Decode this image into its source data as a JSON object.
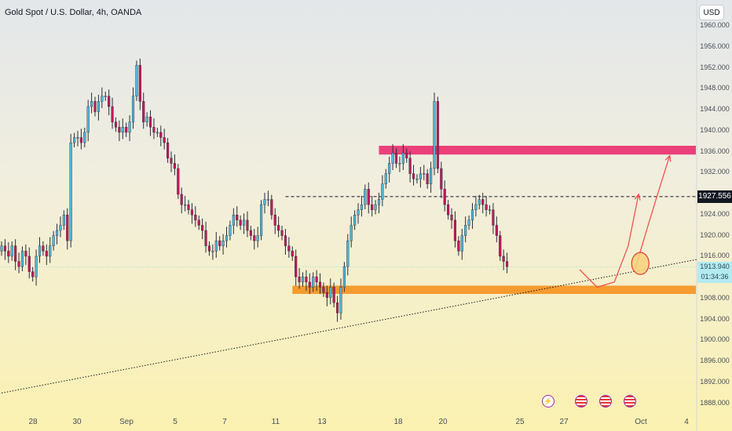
{
  "title": "Gold Spot / U.S. Dollar, 4h, OANDA",
  "currency_button": "USD",
  "price_axis_labels": [
    "1960.000",
    "1956.000",
    "1952.000",
    "1948.000",
    "1944.000",
    "1940.000",
    "1936.000",
    "1932.000",
    "1924.000",
    "1920.000",
    "1916.000",
    "1908.000",
    "1904.000",
    "1900.000",
    "1896.000",
    "1892.000",
    "1888.000"
  ],
  "date_axis_labels": [
    "28",
    "30",
    "Sep",
    "5",
    "7",
    "11",
    "13",
    "18",
    "20",
    "25",
    "27",
    "Oct",
    "4"
  ],
  "dashed_level_label": "1927.556",
  "last_price_label": "1913.940",
  "countdown_label": "01:34:36",
  "event_icons": [
    "lightning-icon",
    "us-flag-icon",
    "us-flag-icon",
    "us-flag-icon"
  ],
  "colors": {
    "bull": "#26a69a",
    "bear": "#ef5350",
    "body_bull": "#4fb6d6",
    "body_bear": "#c2185b",
    "resistance_zone": "#ec407a",
    "support_zone": "#f59b2f",
    "projection": "#ef5350"
  },
  "chart_data": {
    "type": "candlestick",
    "title": "Gold Spot / U.S. Dollar, 4h, OANDA",
    "ylim": [
      1887,
      1962
    ],
    "grid": false,
    "x_range": [
      0,
      201
    ],
    "date_ticks": [
      {
        "label": "28",
        "x": 9
      },
      {
        "label": "30",
        "x": 22
      },
      {
        "label": "Sep",
        "x": 36
      },
      {
        "label": "5",
        "x": 50
      },
      {
        "label": "7",
        "x": 64
      },
      {
        "label": "11",
        "x": 78
      },
      {
        "label": "13",
        "x": 92
      },
      {
        "label": "18",
        "x": 114
      },
      {
        "label": "20",
        "x": 127
      },
      {
        "label": "25",
        "x": 149
      },
      {
        "label": "27",
        "x": 162
      },
      {
        "label": "Oct",
        "x": 184
      },
      {
        "label": "4",
        "x": 197
      }
    ],
    "candle_closes": [
      1918,
      1917,
      1916,
      1918,
      1915,
      1914,
      1917,
      1916,
      1913,
      1912,
      1916,
      1918,
      1917,
      1916,
      1918,
      1920,
      1921,
      1922,
      1924,
      1919,
      1938,
      1939,
      1939,
      1938,
      1940,
      1945,
      1946,
      1944,
      1946,
      1947,
      1947,
      1945,
      1942,
      1941,
      1940,
      1941,
      1940,
      1942,
      1947,
      1953,
      1946,
      1942,
      1943,
      1941,
      1940,
      1940,
      1939,
      1938,
      1935,
      1934,
      1933,
      1928,
      1926,
      1926,
      1925,
      1924,
      1923,
      1922,
      1921,
      1918,
      1917,
      1917,
      1919,
      1918,
      1919,
      1920,
      1922,
      1924,
      1923,
      1922,
      1923,
      1921,
      1920,
      1919,
      1920,
      1926,
      1927,
      1927,
      1924,
      1922,
      1921,
      1920,
      1918,
      1917,
      1916,
      1912,
      1911,
      1912,
      1911,
      1910,
      1912,
      1911,
      1910,
      1909,
      1908,
      1910,
      1907,
      1905,
      1910,
      1914,
      1919,
      1922,
      1924,
      1925,
      1926,
      1929,
      1926,
      1925,
      1926,
      1927,
      1930,
      1932,
      1934,
      1936,
      1934,
      1934,
      1936,
      1935,
      1932,
      1931,
      1931,
      1932,
      1932,
      1930,
      1933,
      1946,
      1933,
      1929,
      1926,
      1924,
      1923,
      1919,
      1917,
      1920,
      1922,
      1923,
      1925,
      1926,
      1927,
      1926,
      1925,
      1925,
      1922,
      1920,
      1916,
      1915,
      1914
    ],
    "dashed_level": 1927.556,
    "last_price": 1913.94,
    "zones": [
      {
        "name": "resistance",
        "from_x": 109,
        "to_x": 201,
        "low": 1935.7,
        "high": 1937.4
      },
      {
        "name": "support",
        "from_x": 84,
        "to_x": 201,
        "low": 1908.7,
        "high": 1910.3
      }
    ],
    "trendline": [
      {
        "x": 0,
        "y": 1889.5
      },
      {
        "x": 201,
        "y": 1915.4
      }
    ],
    "projection_paths": [
      [
        {
          "x": 167,
          "y": 1913.4
        },
        {
          "x": 172,
          "y": 1910
        },
        {
          "x": 177,
          "y": 1911
        },
        {
          "x": 181,
          "y": 1918
        },
        {
          "x": 184,
          "y": 1928
        }
      ],
      [
        {
          "x": 183,
          "y": 1913.5
        },
        {
          "x": 188,
          "y": 1925
        },
        {
          "x": 193,
          "y": 1935.5
        }
      ]
    ],
    "highlight_circle": {
      "x": 184.5,
      "y": 1914.6
    }
  }
}
